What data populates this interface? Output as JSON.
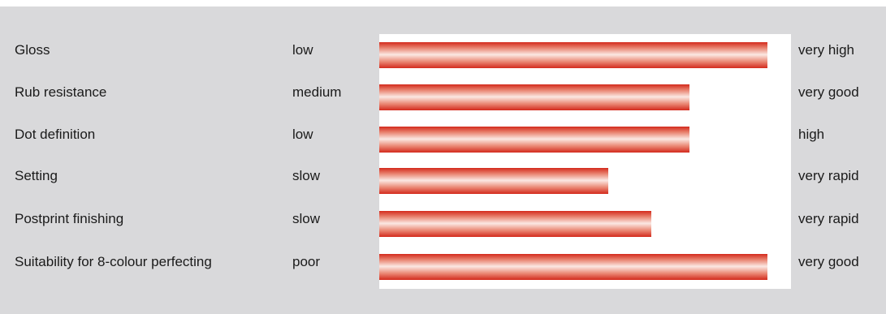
{
  "chart_data": {
    "type": "bar",
    "orientation": "horizontal",
    "categories": [
      "Gloss",
      "Rub resistance",
      "Dot definition",
      "Setting",
      "Postprint finishing",
      "Suitability for 8-colour perfecting"
    ],
    "low_labels": [
      "low",
      "medium",
      "low",
      "slow",
      "slow",
      "poor"
    ],
    "high_labels": [
      "very high",
      "very good",
      "high",
      "very rapid",
      "very rapid",
      "very good"
    ],
    "values": [
      1.0,
      0.8,
      0.8,
      0.59,
      0.7,
      1.0
    ],
    "xlim": [
      0,
      1
    ],
    "grid": false,
    "colors": {
      "bar": "#d42a1c",
      "panel": "#d9d9db",
      "plot_background": "#ffffff"
    }
  }
}
